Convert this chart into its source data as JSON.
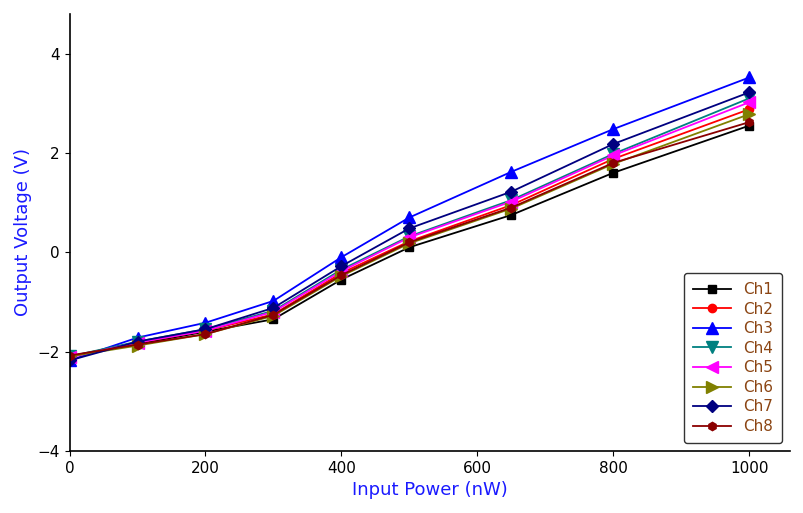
{
  "x": [
    0,
    100,
    200,
    300,
    400,
    500,
    650,
    800,
    1000
  ],
  "channels": [
    {
      "name": "Ch1",
      "y": [
        -2.1,
        -1.85,
        -1.6,
        -1.35,
        -0.55,
        0.1,
        0.75,
        1.6,
        2.55
      ],
      "color": "#000000",
      "marker": "s",
      "marker_size": 6,
      "linewidth": 1.3
    },
    {
      "name": "Ch2",
      "y": [
        -2.1,
        -1.82,
        -1.58,
        -1.25,
        -0.42,
        0.22,
        0.95,
        1.88,
        2.88
      ],
      "color": "#ff0000",
      "marker": "o",
      "marker_size": 6,
      "linewidth": 1.3
    },
    {
      "name": "Ch3",
      "y": [
        -2.18,
        -1.72,
        -1.42,
        -0.98,
        -0.1,
        0.7,
        1.62,
        2.48,
        3.52
      ],
      "color": "#0000ff",
      "marker": "^",
      "marker_size": 8,
      "linewidth": 1.3
    },
    {
      "name": "Ch4",
      "y": [
        -2.1,
        -1.8,
        -1.55,
        -1.18,
        -0.35,
        0.32,
        1.05,
        1.98,
        3.1
      ],
      "color": "#008080",
      "marker": "v",
      "marker_size": 8,
      "linewidth": 1.3
    },
    {
      "name": "Ch5",
      "y": [
        -2.12,
        -1.82,
        -1.58,
        -1.2,
        -0.38,
        0.3,
        1.02,
        1.95,
        3.02
      ],
      "color": "#ff00ff",
      "marker": "<",
      "marker_size": 8,
      "linewidth": 1.3
    },
    {
      "name": "Ch6",
      "y": [
        -2.1,
        -1.88,
        -1.65,
        -1.28,
        -0.48,
        0.18,
        0.88,
        1.78,
        2.78
      ],
      "color": "#808000",
      "marker": ">",
      "marker_size": 8,
      "linewidth": 1.3
    },
    {
      "name": "Ch7",
      "y": [
        -2.18,
        -1.8,
        -1.55,
        -1.12,
        -0.28,
        0.48,
        1.22,
        2.18,
        3.22
      ],
      "color": "#000080",
      "marker": "D",
      "marker_size": 6,
      "linewidth": 1.3
    },
    {
      "name": "Ch8",
      "y": [
        -2.08,
        -1.86,
        -1.65,
        -1.26,
        -0.46,
        0.2,
        0.9,
        1.8,
        2.62
      ],
      "color": "#8b0000",
      "marker": "h",
      "marker_size": 6,
      "linewidth": 1.3
    }
  ],
  "xlabel": "Input Power (nW)",
  "ylabel": "Output Voltage (V)",
  "xlim": [
    0,
    1060
  ],
  "ylim": [
    -4,
    4.8
  ],
  "xticks": [
    0,
    200,
    400,
    600,
    800,
    1000
  ],
  "yticks": [
    -4,
    -2,
    0,
    2,
    4
  ],
  "legend_loc": "lower right",
  "background_color": "#ffffff",
  "xlabel_fontsize": 13,
  "ylabel_fontsize": 13,
  "tick_fontsize": 11,
  "legend_fontsize": 11,
  "legend_text_color": "#8b4513",
  "axis_label_color": "#1a1aff"
}
